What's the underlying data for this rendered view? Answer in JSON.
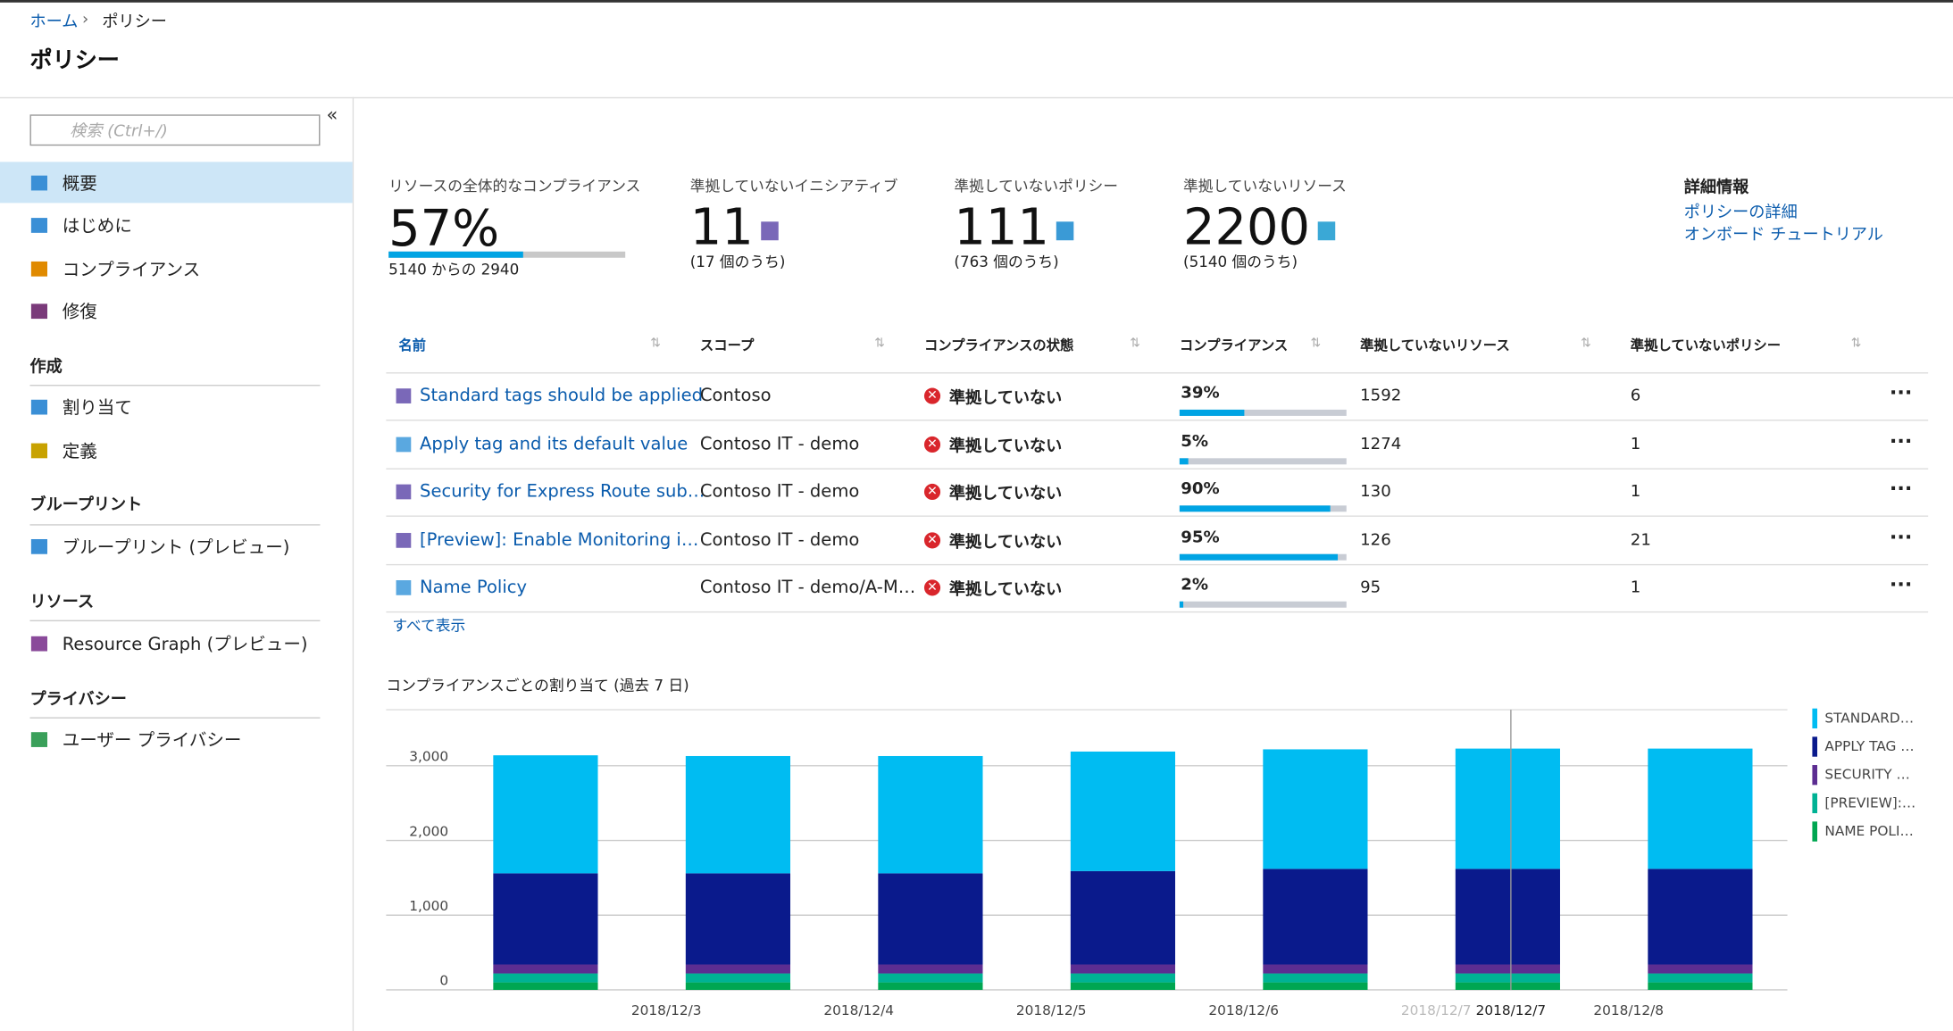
{
  "breadcrumb": [
    "ホーム",
    "ポリシー"
  ],
  "title": "ポリシー",
  "sidebar": {
    "search": "検索 (Ctrl+/)",
    "top_items": [
      "概要",
      "はじめに",
      "コンプライアンス",
      "修復"
    ],
    "sections": [
      {
        "heading": "作成",
        "items": [
          "割り当て",
          "定義"
        ]
      },
      {
        "heading": "ブループリント",
        "items": [
          "ブループリント (プレビュー)"
        ]
      },
      {
        "heading": "リソース",
        "items": [
          "Resource Graph (プレビュー)"
        ]
      },
      {
        "heading": "プライバシー",
        "items": [
          "ユーザー プライバシー"
        ]
      }
    ]
  },
  "summary": {
    "overall": {
      "label": "リソースの全体的なコンプライアンス",
      "value": 57,
      "value_label": "57%",
      "detail": "5140 からの 2940"
    },
    "cards": [
      {
        "label": "準拠していないイニシアティブ",
        "value": "11",
        "sub": "(17 個のうち)"
      },
      {
        "label": "準拠していないポリシー",
        "value": "111",
        "sub": "(763 個のうち)"
      },
      {
        "label": "準拠していないリソース",
        "value": "2200",
        "sub": "(5140 個のうち)"
      }
    ],
    "details": {
      "heading": "詳細情報",
      "links": [
        "ポリシーの詳細",
        "オンボード チュートリアル"
      ]
    }
  },
  "table": {
    "headers": [
      "名前",
      "スコープ",
      "コンプライアンスの状態",
      "コンプライアンス",
      "準拠していないリソース",
      "準拠していないポリシー"
    ],
    "rows": [
      {
        "name": "Standard tags should be applied",
        "scope": "Contoso",
        "state": "準拠していない",
        "compliance": 39,
        "compliance_label": "39%",
        "resources": "1592",
        "policies": "6"
      },
      {
        "name": "Apply tag and its default value",
        "scope": "Contoso IT - demo",
        "state": "準拠していない",
        "compliance": 5,
        "compliance_label": "5%",
        "resources": "1274",
        "policies": "1"
      },
      {
        "name": "Security for Express Route sub…",
        "scope": "Contoso IT - demo",
        "state": "準拠していない",
        "compliance": 90,
        "compliance_label": "90%",
        "resources": "130",
        "policies": "1"
      },
      {
        "name": "[Preview]: Enable Monitoring i…",
        "scope": "Contoso IT - demo",
        "state": "準拠していない",
        "compliance": 95,
        "compliance_label": "95%",
        "resources": "126",
        "policies": "21"
      },
      {
        "name": "Name Policy",
        "scope": "Contoso IT - demo/A-M…",
        "state": "準拠していない",
        "compliance": 2,
        "compliance_label": "2%",
        "resources": "95",
        "policies": "1"
      }
    ],
    "show_all": "すべて表示"
  },
  "chart_data": {
    "type": "bar",
    "stacked": true,
    "title": "コンプライアンスごとの割り当て (過去 7 日)",
    "categories": [
      null,
      null,
      null,
      null,
      null,
      null,
      null
    ],
    "x_labels": [
      "2018/12/3",
      "2018/12/4",
      "2018/12/5",
      "2018/12/6",
      "2018/12/7",
      "2018/12/8"
    ],
    "hover_label": "2018/12/7",
    "ylim": [
      0,
      3750
    ],
    "yticks": [
      0,
      {
        "value": 1000,
        "label": "1,000"
      },
      {
        "value": 2000,
        "label": "2,000"
      },
      {
        "value": 3000,
        "label": "3,000"
      }
    ],
    "grid": true,
    "series": [
      {
        "name": "NAME POLI…",
        "color": "#00a651",
        "values": [
          100,
          100,
          100,
          100,
          100,
          100,
          100
        ]
      },
      {
        "name": "[PREVIEW]:…",
        "color": "#00b294",
        "values": [
          120,
          120,
          120,
          120,
          120,
          120,
          120
        ]
      },
      {
        "name": "SECURITY …",
        "color": "#5c2d91",
        "values": [
          120,
          120,
          120,
          120,
          120,
          120,
          120
        ]
      },
      {
        "name": "APPLY TAG …",
        "color": "#0a1a8c",
        "values": [
          1220,
          1220,
          1220,
          1250,
          1280,
          1280,
          1280
        ]
      },
      {
        "name": "STANDARD…",
        "color": "#00bcf2",
        "values": [
          1580,
          1570,
          1570,
          1600,
          1600,
          1610,
          1610
        ]
      }
    ]
  }
}
